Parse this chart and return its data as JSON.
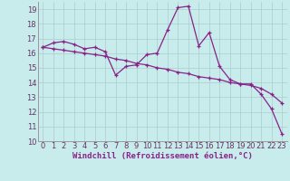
{
  "title": "",
  "xlabel": "Windchill (Refroidissement éolien,°C)",
  "ylabel": "",
  "x_values": [
    0,
    1,
    2,
    3,
    4,
    5,
    6,
    7,
    8,
    9,
    10,
    11,
    12,
    13,
    14,
    15,
    16,
    17,
    18,
    19,
    20,
    21,
    22,
    23
  ],
  "line1_y": [
    16.4,
    16.7,
    16.8,
    16.6,
    16.3,
    16.4,
    16.1,
    14.5,
    15.1,
    15.2,
    15.9,
    16.0,
    17.6,
    19.1,
    19.2,
    16.5,
    17.4,
    15.1,
    14.2,
    13.9,
    13.9,
    13.2,
    12.2,
    10.5
  ],
  "line2_y": [
    16.4,
    16.3,
    16.2,
    16.1,
    16.0,
    15.9,
    15.8,
    15.6,
    15.5,
    15.3,
    15.2,
    15.0,
    14.9,
    14.7,
    14.6,
    14.4,
    14.3,
    14.2,
    14.0,
    13.9,
    13.8,
    13.6,
    13.2,
    12.6
  ],
  "line_color": "#882288",
  "marker": "+",
  "ylim": [
    10,
    19.5
  ],
  "yticks": [
    10,
    11,
    12,
    13,
    14,
    15,
    16,
    17,
    18,
    19
  ],
  "xlim": [
    -0.5,
    23.5
  ],
  "bg_color": "#c8ecec",
  "grid_color": "#aacccc",
  "tick_fontsize": 6,
  "label_fontsize": 6.5
}
